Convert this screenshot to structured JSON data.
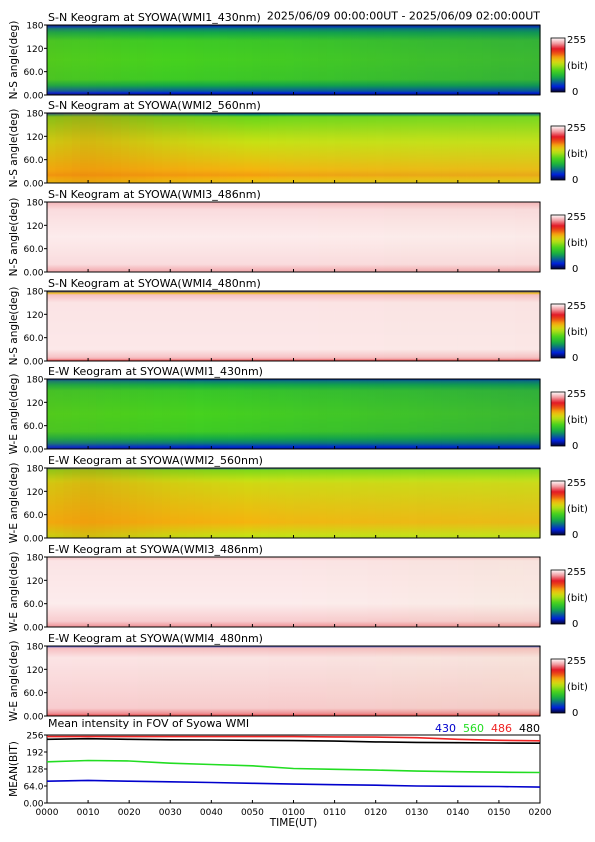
{
  "header": {
    "time_range": "2025/06/09 00:00:00UT - 2025/06/09 02:00:00UT"
  },
  "colorbar": {
    "max_label": "255",
    "unit_label": "(bit)",
    "min_label": "0"
  },
  "chart_data": [
    {
      "type": "heatmap",
      "title": "S-N Keogram at SYOWA(WMI1_430nm)",
      "ylabel": "N-S angle(deg)",
      "yticks": [
        "180",
        "120",
        "60.0",
        "0.00"
      ],
      "ylim": [
        0,
        180
      ],
      "xlim": [
        "00:00",
        "02:00"
      ],
      "colorbar": [
        0,
        255
      ],
      "intensity_profile": [
        {
          "angle": 0,
          "bit": 5
        },
        {
          "angle": 10,
          "bit": 45
        },
        {
          "angle": 40,
          "bit": 95
        },
        {
          "angle": 90,
          "bit": 100
        },
        {
          "angle": 140,
          "bit": 95
        },
        {
          "angle": 172,
          "bit": 55
        },
        {
          "angle": 180,
          "bit": 10
        }
      ],
      "time_trend": [
        {
          "time": "00:00",
          "factor": 1.05
        },
        {
          "time": "00:30",
          "factor": 1.0
        },
        {
          "time": "01:00",
          "factor": 0.97
        },
        {
          "time": "01:30",
          "factor": 0.93
        },
        {
          "time": "02:00",
          "factor": 0.9
        }
      ]
    },
    {
      "type": "heatmap",
      "title": "S-N Keogram at SYOWA(WMI2_560nm)",
      "ylabel": "N-S angle(deg)",
      "yticks": [
        "180",
        "120",
        "60.0",
        "0.00"
      ],
      "ylim": [
        0,
        180
      ],
      "xlim": [
        "00:00",
        "02:00"
      ],
      "colorbar": [
        0,
        255
      ],
      "intensity_profile": [
        {
          "angle": 0,
          "bit": 150
        },
        {
          "angle": 20,
          "bit": 165
        },
        {
          "angle": 60,
          "bit": 150
        },
        {
          "angle": 120,
          "bit": 130
        },
        {
          "angle": 170,
          "bit": 110
        },
        {
          "angle": 180,
          "bit": 20
        }
      ],
      "time_trend": [
        {
          "time": "00:00",
          "factor": 1.15
        },
        {
          "time": "00:10",
          "factor": 1.25
        },
        {
          "time": "00:30",
          "factor": 1.1
        },
        {
          "time": "01:00",
          "factor": 0.95
        },
        {
          "time": "01:30",
          "factor": 0.9
        },
        {
          "time": "02:00",
          "factor": 0.88
        }
      ]
    },
    {
      "type": "heatmap",
      "title": "S-N Keogram at SYOWA(WMI3_486nm)",
      "ylabel": "N-S angle(deg)",
      "yticks": [
        "180",
        "120",
        "60.0",
        "0.00"
      ],
      "ylim": [
        0,
        180
      ],
      "xlim": [
        "00:00",
        "02:00"
      ],
      "colorbar": [
        0,
        255
      ],
      "intensity_profile": [
        {
          "angle": 0,
          "bit": 232
        },
        {
          "angle": 20,
          "bit": 246
        },
        {
          "angle": 90,
          "bit": 250
        },
        {
          "angle": 160,
          "bit": 246
        },
        {
          "angle": 180,
          "bit": 236
        }
      ],
      "time_trend": [
        {
          "time": "00:00",
          "factor": 1.0
        },
        {
          "time": "01:00",
          "factor": 1.0
        },
        {
          "time": "02:00",
          "factor": 0.99
        }
      ]
    },
    {
      "type": "heatmap",
      "title": "S-N Keogram at SYOWA(WMI4_480nm)",
      "ylabel": "N-S angle(deg)",
      "yticks": [
        "180",
        "120",
        "60.0",
        "0.00"
      ],
      "ylim": [
        0,
        180
      ],
      "xlim": [
        "00:00",
        "02:00"
      ],
      "colorbar": [
        0,
        255
      ],
      "intensity_profile": [
        {
          "angle": 0,
          "bit": 200
        },
        {
          "angle": 6,
          "bit": 238
        },
        {
          "angle": 30,
          "bit": 249
        },
        {
          "angle": 150,
          "bit": 248
        },
        {
          "angle": 172,
          "bit": 238
        },
        {
          "angle": 180,
          "bit": 20
        }
      ],
      "time_trend": [
        {
          "time": "00:00",
          "factor": 1.0
        },
        {
          "time": "01:00",
          "factor": 1.0
        },
        {
          "time": "02:00",
          "factor": 0.99
        }
      ]
    },
    {
      "type": "heatmap",
      "title": "E-W Keogram at SYOWA(WMI1_430nm)",
      "ylabel": "W-E angle(deg)",
      "yticks": [
        "180",
        "120",
        "60.0",
        "0.00"
      ],
      "ylim": [
        0,
        180
      ],
      "xlim": [
        "00:00",
        "02:00"
      ],
      "colorbar": [
        0,
        255
      ],
      "intensity_profile": [
        {
          "angle": 0,
          "bit": 15
        },
        {
          "angle": 15,
          "bit": 55
        },
        {
          "angle": 45,
          "bit": 95
        },
        {
          "angle": 90,
          "bit": 100
        },
        {
          "angle": 150,
          "bit": 92
        },
        {
          "angle": 175,
          "bit": 55
        },
        {
          "angle": 180,
          "bit": 15
        }
      ],
      "time_trend": [
        {
          "time": "00:00",
          "factor": 1.05
        },
        {
          "time": "01:00",
          "factor": 0.97
        },
        {
          "time": "02:00",
          "factor": 0.9
        }
      ]
    },
    {
      "type": "heatmap",
      "title": "E-W Keogram at SYOWA(WMI2_560nm)",
      "ylabel": "W-E angle(deg)",
      "yticks": [
        "180",
        "120",
        "60.0",
        "0.00"
      ],
      "ylim": [
        0,
        180
      ],
      "xlim": [
        "00:00",
        "02:00"
      ],
      "colorbar": [
        0,
        255
      ],
      "intensity_profile": [
        {
          "angle": 0,
          "bit": 130
        },
        {
          "angle": 40,
          "bit": 160
        },
        {
          "angle": 90,
          "bit": 150
        },
        {
          "angle": 140,
          "bit": 140
        },
        {
          "angle": 175,
          "bit": 115
        },
        {
          "angle": 180,
          "bit": 40
        }
      ],
      "time_trend": [
        {
          "time": "00:00",
          "factor": 1.12
        },
        {
          "time": "00:10",
          "factor": 1.22
        },
        {
          "time": "00:30",
          "factor": 1.08
        },
        {
          "time": "01:00",
          "factor": 0.95
        },
        {
          "time": "02:00",
          "factor": 0.88
        }
      ]
    },
    {
      "type": "heatmap",
      "title": "E-W Keogram at SYOWA(WMI3_486nm)",
      "ylabel": "W-E angle(deg)",
      "yticks": [
        "180",
        "120",
        "60.0",
        "0.00"
      ],
      "ylim": [
        0,
        180
      ],
      "xlim": [
        "00:00",
        "02:00"
      ],
      "colorbar": [
        0,
        255
      ],
      "intensity_profile": [
        {
          "angle": 0,
          "bit": 226
        },
        {
          "angle": 15,
          "bit": 242
        },
        {
          "angle": 60,
          "bit": 250
        },
        {
          "angle": 170,
          "bit": 248
        },
        {
          "angle": 180,
          "bit": 240
        }
      ],
      "time_trend": [
        {
          "time": "00:00",
          "factor": 1.0
        },
        {
          "time": "01:00",
          "factor": 1.0
        },
        {
          "time": "02:00",
          "factor": 0.97
        }
      ]
    },
    {
      "type": "heatmap",
      "title": "E-W Keogram at SYOWA(WMI4_480nm)",
      "ylabel": "W-E angle(deg)",
      "yticks": [
        "180",
        "120",
        "60.0",
        "0.00"
      ],
      "ylim": [
        0,
        180
      ],
      "xlim": [
        "00:00",
        "02:00"
      ],
      "colorbar": [
        0,
        255
      ],
      "intensity_profile": [
        {
          "angle": 0,
          "bit": 200
        },
        {
          "angle": 5,
          "bit": 225
        },
        {
          "angle": 20,
          "bit": 242
        },
        {
          "angle": 150,
          "bit": 248
        },
        {
          "angle": 175,
          "bit": 238
        },
        {
          "angle": 180,
          "bit": 30
        }
      ],
      "time_trend": [
        {
          "time": "00:00",
          "factor": 1.0
        },
        {
          "time": "01:00",
          "factor": 0.99
        },
        {
          "time": "02:00",
          "factor": 0.96
        }
      ]
    },
    {
      "type": "line",
      "title": "Mean intensity in FOV of Syowa WMI",
      "xlabel": "TIME(UT)",
      "ylabel": "MEAN(BIT)",
      "ylim": [
        0,
        256
      ],
      "yticks": [
        "256",
        "192",
        "128",
        "64.0",
        "0.00"
      ],
      "xticks": [
        "0000",
        "0010",
        "0020",
        "0030",
        "0040",
        "0050",
        "0100",
        "0110",
        "0120",
        "0130",
        "0140",
        "0150",
        "0200"
      ],
      "x_minutes": [
        0,
        10,
        20,
        30,
        40,
        50,
        60,
        70,
        80,
        90,
        100,
        110,
        120
      ],
      "series": [
        {
          "name": "430",
          "color": "#0000cc",
          "values": [
            82,
            85,
            82,
            80,
            77,
            74,
            71,
            69,
            67,
            64,
            63,
            62,
            60
          ]
        },
        {
          "name": "560",
          "color": "#22dd22",
          "values": [
            155,
            160,
            158,
            150,
            145,
            140,
            130,
            127,
            124,
            120,
            118,
            116,
            115
          ]
        },
        {
          "name": "486",
          "color": "#ee2222",
          "values": [
            250,
            250,
            250,
            250,
            250,
            250,
            250,
            249,
            248,
            246,
            240,
            236,
            234
          ]
        },
        {
          "name": "480",
          "color": "#000000",
          "values": [
            240,
            242,
            240,
            238,
            237,
            236,
            235,
            233,
            230,
            228,
            227,
            226,
            225
          ]
        }
      ]
    }
  ]
}
